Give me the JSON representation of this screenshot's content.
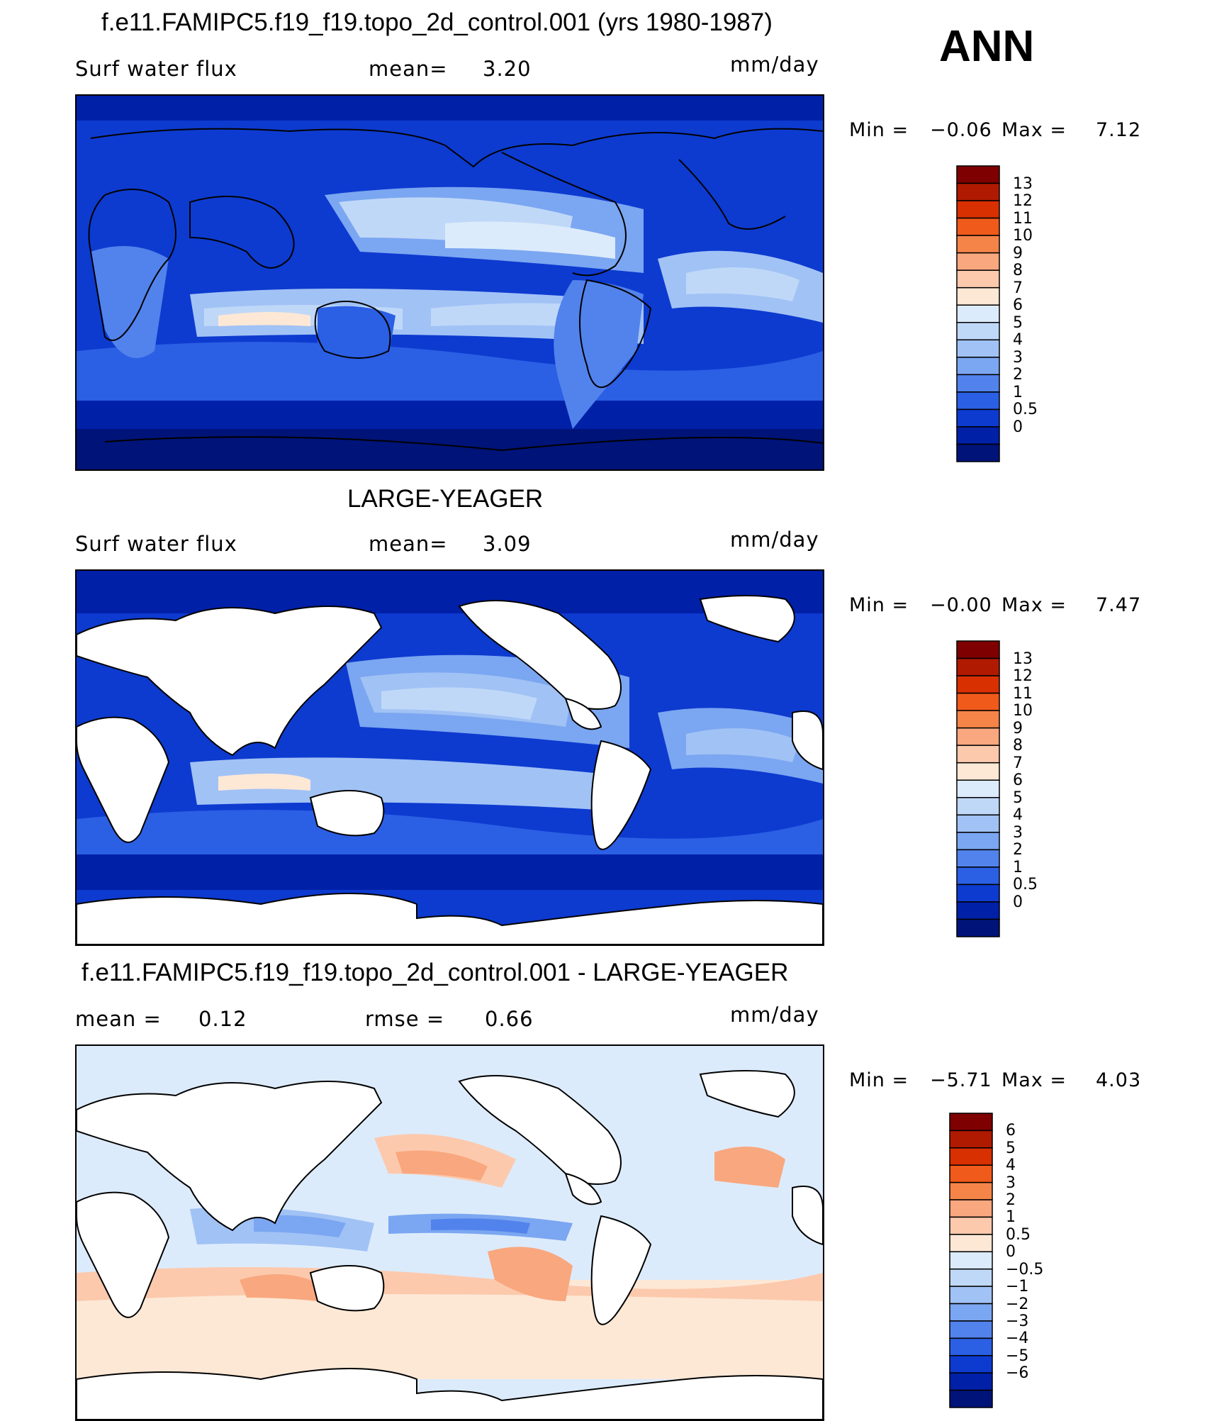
{
  "season": "ANN",
  "panels": [
    {
      "title": "f.e11.FAMIPC5.f19_f19.topo_2d_control.001 (yrs 1980-1987)",
      "left_label": "Surf  water  flux",
      "stat_label": "mean=",
      "stat_value": "3.20",
      "units": "mm/day",
      "min_label": "Min  =",
      "min_value": "−0.06",
      "max_label": "Max  =",
      "max_value": "7.12"
    },
    {
      "title": "LARGE-YEAGER",
      "left_label": "Surf  water  flux",
      "stat_label": "mean=",
      "stat_value": "3.09",
      "units": "mm/day",
      "min_label": "Min  =",
      "min_value": "−0.00",
      "max_label": "Max  =",
      "max_value": "7.47"
    },
    {
      "title": "f.e11.FAMIPC5.f19_f19.topo_2d_control.001 - LARGE-YEAGER",
      "left_label": "mean  =",
      "left_value": "0.12",
      "stat_label": "rmse  =",
      "stat_value": "0.66",
      "units": "mm/day",
      "min_label": "Min  =",
      "min_value": "−5.71",
      "max_label": "Max  =",
      "max_value": "4.03"
    }
  ],
  "colorbars": {
    "abs": {
      "labels": [
        "13",
        "12",
        "11",
        "10",
        "9",
        "8",
        "7",
        "6",
        "5",
        "4",
        "3",
        "2",
        "1",
        "0.5",
        "0"
      ],
      "colors": [
        "#7f0000",
        "#b01a00",
        "#d83000",
        "#f05a1a",
        "#f58448",
        "#f9a77e",
        "#fcc9ad",
        "#fde8d6",
        "#dcebfb",
        "#c0d8f8",
        "#a1c2f5",
        "#7ba6f1",
        "#5283ec",
        "#2b5fe4",
        "#0d3bd0",
        "#0020a8",
        "#001378"
      ]
    },
    "diff": {
      "labels": [
        "6",
        "5",
        "4",
        "3",
        "2",
        "1",
        "0.5",
        "0",
        "−0.5",
        "−1",
        "−2",
        "−3",
        "−4",
        "−5",
        "−6"
      ],
      "colors": [
        "#7f0000",
        "#b01a00",
        "#d83000",
        "#f05a1a",
        "#f58448",
        "#f9a77e",
        "#fcc9ad",
        "#fde8d6",
        "#dcebfb",
        "#c0d8f8",
        "#a1c2f5",
        "#7ba6f1",
        "#5283ec",
        "#2b5fe4",
        "#0d3bd0",
        "#0020a8",
        "#001378"
      ]
    }
  },
  "chart_data": [
    {
      "type": "heatmap",
      "title": "f.e11.FAMIPC5.f19_f19.topo_2d_control.001 (yrs 1980-1987)",
      "variable": "Surf water flux",
      "units": "mm/day",
      "season": "ANN",
      "mean": 3.2,
      "min": -0.06,
      "max": 7.12,
      "contour_levels": [
        0,
        0.5,
        1,
        2,
        3,
        4,
        5,
        6,
        7,
        8,
        9,
        10,
        11,
        12,
        13
      ],
      "land_masked": false
    },
    {
      "type": "heatmap",
      "title": "LARGE-YEAGER",
      "variable": "Surf water flux",
      "units": "mm/day",
      "season": "ANN",
      "mean": 3.09,
      "min": -0.0,
      "max": 7.47,
      "contour_levels": [
        0,
        0.5,
        1,
        2,
        3,
        4,
        5,
        6,
        7,
        8,
        9,
        10,
        11,
        12,
        13
      ],
      "land_masked": true
    },
    {
      "type": "heatmap",
      "title": "f.e11.FAMIPC5.f19_f19.topo_2d_control.001 - LARGE-YEAGER",
      "units": "mm/day",
      "season": "ANN",
      "mean": 0.12,
      "rmse": 0.66,
      "min": -5.71,
      "max": 4.03,
      "contour_levels": [
        -6,
        -5,
        -4,
        -3,
        -2,
        -1,
        -0.5,
        0,
        0.5,
        1,
        2,
        3,
        4,
        5,
        6
      ],
      "land_masked": true
    }
  ]
}
